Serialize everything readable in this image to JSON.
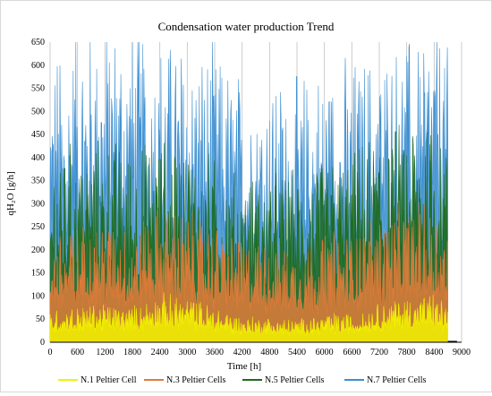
{
  "chart_data": {
    "type": "line",
    "title": "Condensation water production Trend",
    "xlabel": "Time [h]",
    "ylabel": "qH₂O [g/h]",
    "xlim": [
      0,
      9000
    ],
    "ylim": [
      0,
      650
    ],
    "x_ticks": [
      "0",
      "600",
      "1200",
      "1800",
      "2400",
      "3000",
      "3600",
      "4200",
      "4800",
      "5400",
      "6000",
      "6600",
      "7200",
      "7800",
      "8400",
      "9000"
    ],
    "y_ticks": [
      "0",
      "50",
      "100",
      "150",
      "200",
      "250",
      "300",
      "350",
      "400",
      "450",
      "500",
      "550",
      "600",
      "650"
    ],
    "grid": "vertical",
    "legend_position": "bottom",
    "series": [
      {
        "name": "N.7 Peltier Cells",
        "color": "#3d8fd1",
        "envelope": {
          "x": [
            0,
            600,
            1200,
            1800,
            2400,
            3000,
            3600,
            4200,
            4800,
            5400,
            6000,
            6600,
            7200,
            7800,
            8400,
            8700
          ],
          "y": [
            440,
            480,
            500,
            490,
            470,
            470,
            440,
            410,
            410,
            400,
            430,
            430,
            450,
            460,
            500,
            440
          ]
        }
      },
      {
        "name": "N.5 Peltier Cells",
        "color": "#1e6b1e",
        "envelope": {
          "x": [
            0,
            600,
            1200,
            1800,
            2400,
            3000,
            3600,
            4200,
            4800,
            5400,
            6000,
            6600,
            7200,
            7800,
            8400,
            8700
          ],
          "y": [
            300,
            300,
            310,
            300,
            310,
            310,
            280,
            250,
            260,
            260,
            280,
            290,
            320,
            340,
            370,
            290
          ]
        }
      },
      {
        "name": "N.3 Peltier Cells",
        "color": "#e07b39",
        "envelope": {
          "x": [
            0,
            600,
            1200,
            1800,
            2400,
            3000,
            3600,
            4200,
            4800,
            5400,
            6000,
            6600,
            7200,
            7800,
            8400,
            8700
          ],
          "y": [
            170,
            180,
            190,
            180,
            210,
            200,
            180,
            160,
            160,
            150,
            170,
            170,
            200,
            210,
            220,
            180
          ]
        }
      },
      {
        "name": "N.1 Peltier Cell",
        "color": "#f2f200",
        "envelope": {
          "x": [
            0,
            600,
            1200,
            1800,
            2400,
            3000,
            3600,
            4200,
            4800,
            5400,
            6000,
            6600,
            7200,
            7800,
            8400,
            8700
          ],
          "y": [
            50,
            55,
            60,
            55,
            75,
            70,
            55,
            40,
            40,
            35,
            45,
            45,
            60,
            70,
            75,
            55
          ]
        }
      }
    ],
    "legend": [
      "N.1 Peltier Cell",
      "N.3 Peltier Cells",
      "N.5 Peltier Cells",
      "N.7 Peltier Cells"
    ],
    "legend_colors": [
      "#f2f200",
      "#e07b39",
      "#1e6b1e",
      "#3d8fd1"
    ]
  }
}
